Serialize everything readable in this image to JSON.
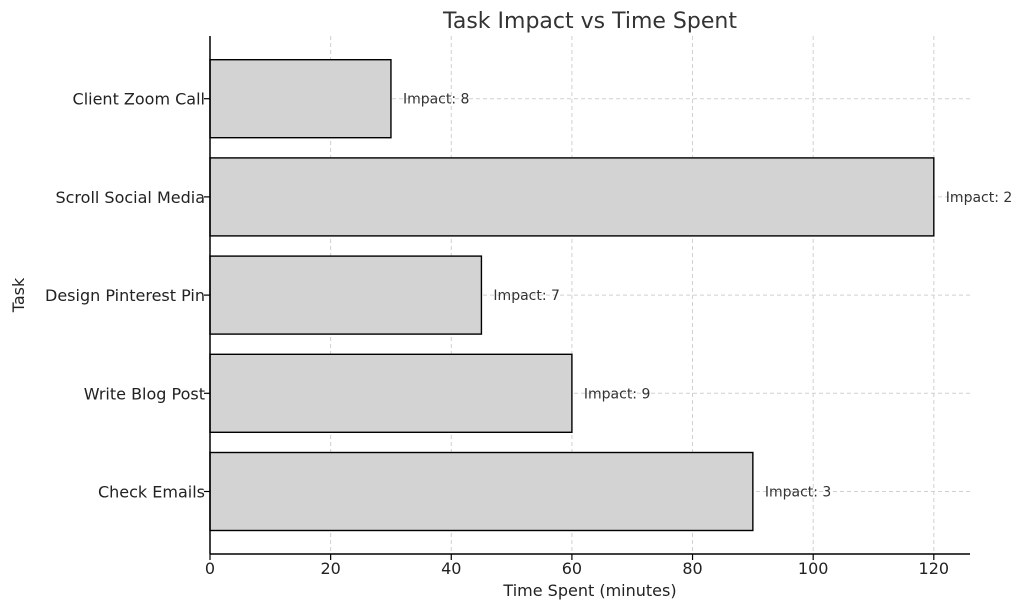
{
  "chart_data": {
    "type": "bar",
    "orientation": "horizontal",
    "title": "Task Impact vs Time Spent",
    "xlabel": "Time Spent (minutes)",
    "ylabel": "Task",
    "xlim": [
      0,
      126
    ],
    "xticks": [
      0,
      20,
      40,
      60,
      80,
      100,
      120
    ],
    "grid": true,
    "bar_color": "#d3d3d3",
    "edge_color": "#000000",
    "categories": [
      "Check Emails",
      "Write Blog Post",
      "Design Pinterest Pin",
      "Scroll Social Media",
      "Client Zoom Call"
    ],
    "values": [
      90,
      60,
      45,
      120,
      30
    ],
    "annotations": [
      "Impact: 3",
      "Impact: 9",
      "Impact: 7",
      "Impact: 2",
      "Impact: 8"
    ]
  }
}
